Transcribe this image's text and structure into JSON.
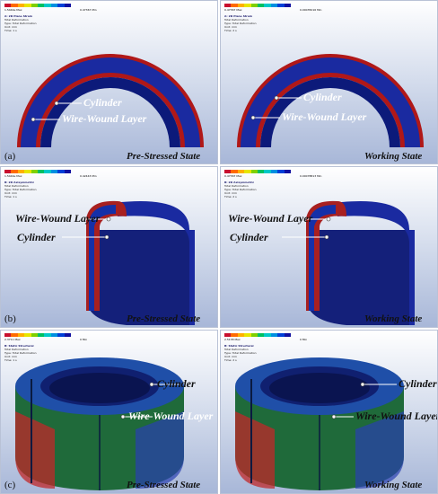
{
  "panels": [
    {
      "letter": "(a)",
      "left": {
        "state": "Pre-Stressed State",
        "max": "1.5444e Max",
        "min": "0.47367 Min",
        "hud": [
          "A: 2D Plane Strain",
          "Total Deformation",
          "Type: Total Deformation",
          "Unit: mm",
          "Time: 1 s"
        ],
        "labels": [
          "Cylinder",
          "Wire-Wound Layer"
        ]
      },
      "right": {
        "state": "Working State",
        "max": "0.47367 Max",
        "min": "0.00035016 Min",
        "hud": [
          "A: 2D Plane Strain",
          "Total Deformation",
          "Type: Total Deformation",
          "Unit: mm",
          "Time: 2 s"
        ],
        "labels": [
          "Cylinder",
          "Wire-Wound Layer"
        ]
      }
    },
    {
      "letter": "(b)",
      "left": {
        "state": "Pre-Stressed State",
        "max": "1.5444e Max",
        "min": "0.42443 Min",
        "hud": [
          "B: 2D Axisymmetric",
          "Total Deformation",
          "Type: Total Deformation",
          "Unit: mm",
          "Time: 1 s"
        ],
        "labels": [
          "Wire-Wound Layer",
          "Cylinder"
        ]
      },
      "right": {
        "state": "Working State",
        "max": "0.47367 Max",
        "min": "0.00078813 Min",
        "hud": [
          "B: 2D Axisymmetric",
          "Total Deformation",
          "Type: Total Deformation",
          "Unit: mm",
          "Time: 2 s"
        ],
        "labels": [
          "Wire-Wound Layer",
          "Cylinder"
        ]
      }
    },
    {
      "letter": "(c)",
      "left": {
        "state": "Pre-Stressed State",
        "max": "2.3711 Max",
        "min": "0 Min",
        "hud": [
          "B: Static Structural",
          "Total Deformation",
          "Type: Total Deformation",
          "Unit: mm",
          "Time: 1 s"
        ],
        "labels": [
          "Cylinder",
          "Wire-Wound Layer"
        ]
      },
      "right": {
        "state": "Working State",
        "max": "2.5138 Max",
        "min": "0 Min",
        "hud": [
          "B: Static Structural",
          "Total Deformation",
          "Type: Total Deformation",
          "Unit: mm",
          "Time: 2 s"
        ],
        "labels": [
          "Cylinder",
          "Wire-Wound Layer"
        ]
      }
    }
  ],
  "colors": {
    "legend": [
      "#c8102e",
      "#ff6a00",
      "#ffb000",
      "#e6e600",
      "#7fd000",
      "#00c060",
      "#00c8c8",
      "#0090e0",
      "#0040d8",
      "#1010a0"
    ],
    "ring_outer": "#b01818",
    "ring_mid": "#1a2aa0",
    "ring_inner": "#0c1a7a"
  }
}
